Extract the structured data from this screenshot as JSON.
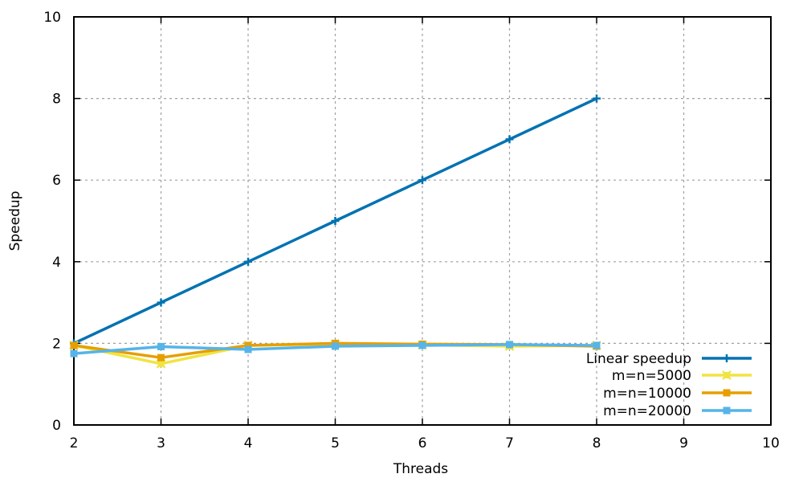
{
  "chart_data": {
    "type": "line",
    "xlabel": "Threads",
    "ylabel": "Speedup",
    "xlim": [
      2,
      10
    ],
    "ylim": [
      0,
      10
    ],
    "xticks": [
      2,
      3,
      4,
      5,
      6,
      7,
      8,
      9,
      10
    ],
    "yticks": [
      0,
      2,
      4,
      6,
      8,
      10
    ],
    "grid": true,
    "legend_position": "bottom-right",
    "x": [
      2,
      3,
      4,
      5,
      6,
      7,
      8
    ],
    "series": [
      {
        "name": "Linear speedup",
        "values": [
          2,
          3,
          4,
          5,
          6,
          7,
          8
        ],
        "color": "#0072b2",
        "marker": "plus"
      },
      {
        "name": "m=n=5000",
        "values": [
          1.95,
          1.5,
          1.95,
          1.98,
          1.96,
          1.93,
          1.95
        ],
        "color": "#f0e442",
        "marker": "x-square"
      },
      {
        "name": "m=n=10000",
        "values": [
          1.95,
          1.65,
          1.95,
          2.0,
          1.98,
          1.97,
          1.93
        ],
        "color": "#e69f00",
        "marker": "square"
      },
      {
        "name": "m=n=20000",
        "values": [
          1.75,
          1.92,
          1.85,
          1.93,
          1.95,
          1.97,
          1.95
        ],
        "color": "#56b4e9",
        "marker": "square"
      }
    ]
  }
}
